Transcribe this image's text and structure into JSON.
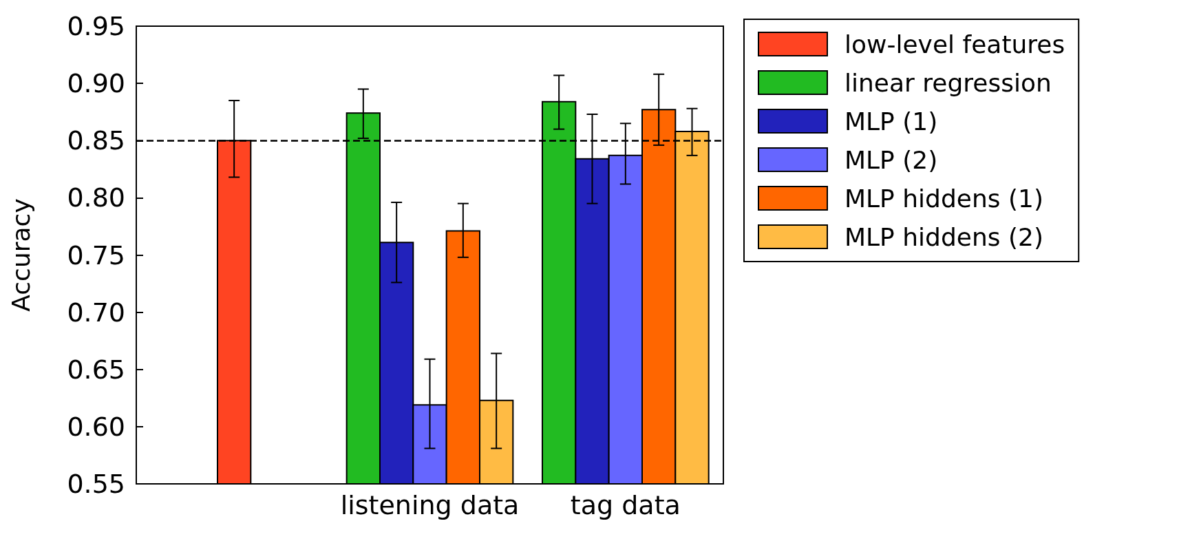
{
  "chart_data": {
    "type": "bar",
    "ylabel": "Accuracy",
    "categories": [
      null,
      "listening data",
      "tag data"
    ],
    "series": [
      {
        "name": "low-level features",
        "color": "#ff4422",
        "values": [
          0.85,
          null,
          null
        ],
        "errors": [
          [
            0.818,
            0.885
          ],
          null,
          null
        ]
      },
      {
        "name": "linear regression",
        "color": "#22bb22",
        "values": [
          null,
          0.874,
          0.884
        ],
        "errors": [
          null,
          [
            0.852,
            0.895
          ],
          [
            0.86,
            0.907
          ]
        ]
      },
      {
        "name": "MLP (1)",
        "color": "#2222bb",
        "values": [
          null,
          0.761,
          0.834
        ],
        "errors": [
          null,
          [
            0.726,
            0.796
          ],
          [
            0.795,
            0.873
          ]
        ]
      },
      {
        "name": "MLP (2)",
        "color": "#6666ff",
        "values": [
          null,
          0.619,
          0.837
        ],
        "errors": [
          null,
          [
            0.581,
            0.659
          ],
          [
            0.812,
            0.865
          ]
        ]
      },
      {
        "name": "MLP hiddens (1)",
        "color": "#ff6600",
        "values": [
          null,
          0.771,
          0.877
        ],
        "errors": [
          null,
          [
            0.748,
            0.795
          ],
          [
            0.846,
            0.908
          ]
        ]
      },
      {
        "name": "MLP hiddens (2)",
        "color": "#ffbb44",
        "values": [
          null,
          0.623,
          0.858
        ],
        "errors": [
          null,
          [
            0.581,
            0.664
          ],
          [
            0.837,
            0.878
          ]
        ]
      }
    ],
    "ylim": [
      0.55,
      0.95
    ],
    "yticks": [
      {
        "value": 0.55,
        "label": "0.55"
      },
      {
        "value": 0.6,
        "label": "0.60"
      },
      {
        "value": 0.65,
        "label": "0.65"
      },
      {
        "value": 0.7,
        "label": "0.70"
      },
      {
        "value": 0.75,
        "label": "0.75"
      },
      {
        "value": 0.8,
        "label": "0.80"
      },
      {
        "value": 0.85,
        "label": "0.85"
      },
      {
        "value": 0.9,
        "label": "0.90"
      },
      {
        "value": 0.95,
        "label": "0.95"
      }
    ],
    "ref_lines": [
      {
        "axis": "y",
        "value": 0.85,
        "line_style": "dashed",
        "color": "#000000"
      }
    ],
    "grid": false,
    "legend": "top right"
  }
}
